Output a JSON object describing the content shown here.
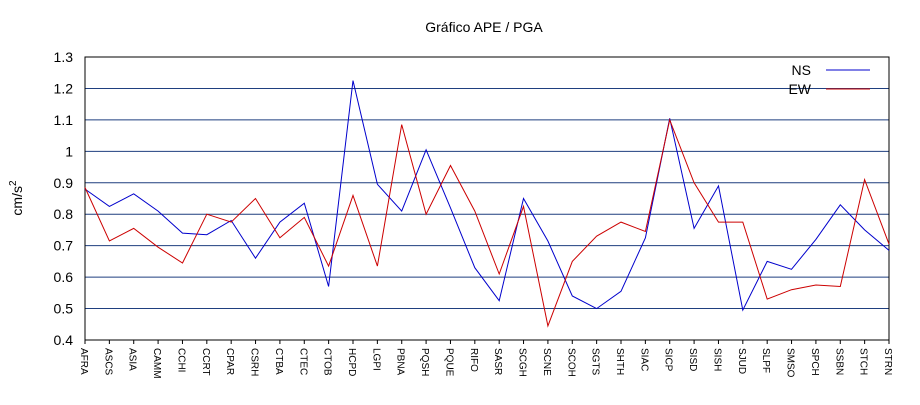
{
  "chart_data": {
    "type": "line",
    "title": "Gráfico  APE / PGA",
    "xlabel": "",
    "ylabel": "cm/s",
    "ylabel_sup": "2",
    "ylim": [
      0.4,
      1.3
    ],
    "yticks": [
      "0.4",
      "0.5",
      "0.6",
      "0.7",
      "0.8",
      "0.9",
      "1",
      "1.1",
      "1.2",
      "1.3"
    ],
    "grid": "horizontal",
    "legend_position": "top-right",
    "categories": [
      "AFRA",
      "ASCS",
      "ASIA",
      "CAMM",
      "CCHI",
      "CCRT",
      "CPAR",
      "CSRH",
      "CTBA",
      "CTEC",
      "CTOB",
      "HCPD",
      "LGPI",
      "PBNA",
      "PQSH",
      "PQUE",
      "RIFO",
      "SASR",
      "SCGH",
      "SCNE",
      "SCOH",
      "SGTS",
      "SHTH",
      "SIAC",
      "SICP",
      "SISD",
      "SISH",
      "SJUD",
      "SLPF",
      "SMSO",
      "SPCH",
      "SSBN",
      "STCH",
      "STRN"
    ],
    "series": [
      {
        "name": "NS",
        "color": "#0000cc",
        "values": [
          0.88,
          0.825,
          0.865,
          0.81,
          0.74,
          0.735,
          0.78,
          0.66,
          0.775,
          0.835,
          0.57,
          1.225,
          0.895,
          0.81,
          1.005,
          0.82,
          0.63,
          0.525,
          0.85,
          0.715,
          0.54,
          0.5,
          0.555,
          0.725,
          1.105,
          0.755,
          0.89,
          0.495,
          0.65,
          0.625,
          0.72,
          0.83,
          0.75,
          0.685
        ]
      },
      {
        "name": "EW",
        "color": "#cc0000",
        "values": [
          0.885,
          0.715,
          0.755,
          0.695,
          0.645,
          0.8,
          0.775,
          0.85,
          0.725,
          0.79,
          0.635,
          0.86,
          0.635,
          1.085,
          0.8,
          0.955,
          0.81,
          0.61,
          0.825,
          0.445,
          0.65,
          0.73,
          0.775,
          0.745,
          1.1,
          0.9,
          0.775,
          0.775,
          0.53,
          0.56,
          0.575,
          0.57,
          0.91,
          0.705
        ]
      }
    ]
  }
}
